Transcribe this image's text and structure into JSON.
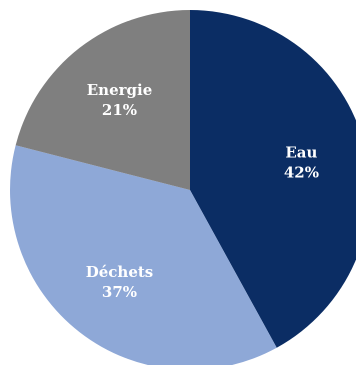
{
  "chart_data": {
    "type": "pie",
    "title": "",
    "slices": [
      {
        "label": "Eau",
        "value": 42,
        "value_label": "42%",
        "color": "#0b2d64"
      },
      {
        "label": "Déchets",
        "value": 37,
        "value_label": "37%",
        "color": "#8ea8d7"
      },
      {
        "label": "Energie",
        "value": 21,
        "value_label": "21%",
        "color": "#7f7f7f"
      }
    ],
    "start_angle_deg": 0,
    "direction": "clockwise",
    "legend": "none"
  }
}
